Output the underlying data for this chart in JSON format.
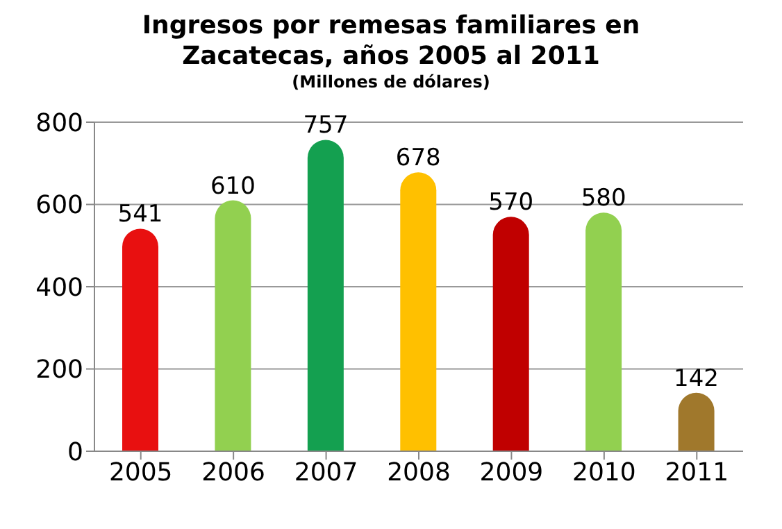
{
  "chart_data": {
    "type": "bar",
    "title": "Ingresos por remesas familiares en Zacatecas, años 2005 al 2011",
    "subtitle": "(Millones de dólares)",
    "categories": [
      "2005",
      "2006",
      "2007",
      "2008",
      "2009",
      "2010",
      "2011"
    ],
    "values": [
      541,
      610,
      757,
      678,
      570,
      580,
      142
    ],
    "colors": [
      "#e81010",
      "#92d050",
      "#14a050",
      "#ffc000",
      "#c00000",
      "#92d050",
      "#a0782c"
    ],
    "ylim": [
      0,
      800
    ],
    "yticks": [
      0,
      200,
      400,
      600,
      800
    ],
    "grid": "y",
    "data_labels": true
  }
}
